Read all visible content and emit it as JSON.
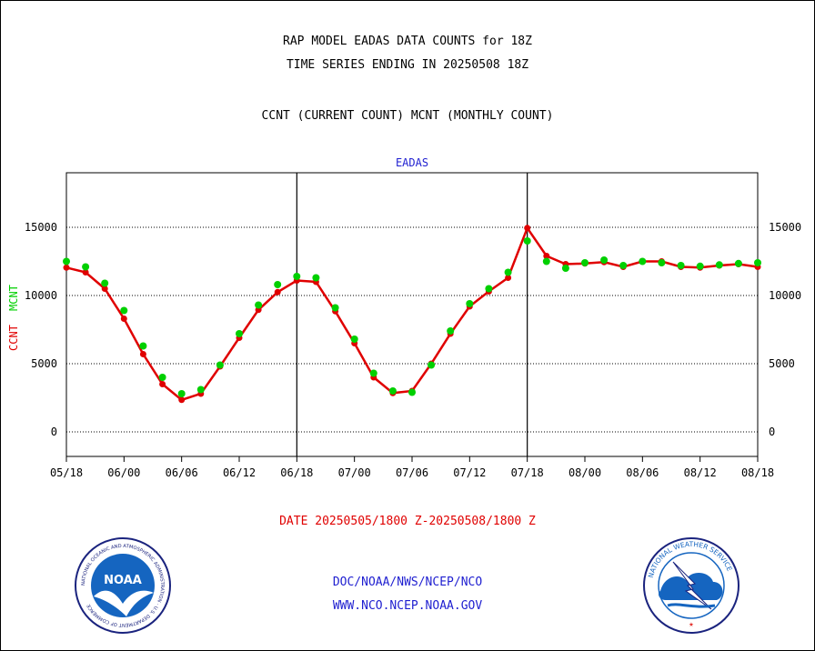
{
  "titles": {
    "line1": "RAP MODEL EADAS DATA COUNTS for 18Z",
    "line2": "TIME SERIES ENDING IN 20250508 18Z",
    "line3": "CCNT (CURRENT COUNT) MCNT (MONTHLY COUNT)"
  },
  "footer": {
    "date_range": "DATE 20250505/1800 Z-20250508/1800 Z",
    "org": "DOC/NOAA/NWS/NCEP/NCO",
    "url": "WWW.NCO.NCEP.NOAA.GOV"
  },
  "logos": {
    "left": {
      "name": "noaa-logo",
      "text": "NOAA",
      "ring_text": "NATIONAL OCEANIC AND ATMOSPHERIC ADMINISTRATION · U.S. DEPARTMENT OF COMMERCE"
    },
    "right": {
      "name": "nws-logo",
      "ring_text": "NATIONAL WEATHER SERVICE"
    }
  },
  "chart_data": {
    "type": "line",
    "title": "EADAS",
    "ylabel_left_series1": "CCNT",
    "ylabel_left_series2": "MCNT",
    "x_tick_labels": [
      "05/18",
      "06/00",
      "06/06",
      "06/12",
      "06/18",
      "07/00",
      "07/06",
      "07/12",
      "07/18",
      "08/00",
      "08/06",
      "08/12",
      "08/18"
    ],
    "xlim": [
      0,
      72
    ],
    "ylim": [
      -1800,
      19000
    ],
    "y_ticks": [
      0,
      5000,
      10000,
      15000
    ],
    "grid": "horizontal-dotted",
    "vertical_separators_x": [
      24,
      48
    ],
    "colors": {
      "ccnt": "#e00000",
      "mcnt": "#00d000",
      "title": "#1f1fd0"
    },
    "series": [
      {
        "name": "CCNT",
        "x": [
          0,
          2,
          4,
          6,
          8,
          10,
          12,
          14,
          16,
          18,
          20,
          22,
          24,
          26,
          28,
          30,
          32,
          34,
          36,
          38,
          40,
          42,
          44,
          46,
          48,
          50,
          52,
          54,
          56,
          58,
          60,
          62,
          64,
          66,
          68,
          70,
          72
        ],
        "values": [
          12050,
          11700,
          10500,
          8300,
          5700,
          3500,
          2350,
          2800,
          4800,
          6900,
          8950,
          10250,
          11100,
          11000,
          8850,
          6500,
          4000,
          2850,
          3000,
          5000,
          7200,
          9200,
          10300,
          11300,
          14950,
          12900,
          12300,
          12350,
          12450,
          12100,
          12500,
          12500,
          12100,
          12050,
          12200,
          12300,
          12100
        ]
      },
      {
        "name": "MCNT",
        "x": [
          0,
          2,
          4,
          6,
          8,
          10,
          12,
          14,
          16,
          18,
          20,
          22,
          24,
          26,
          28,
          30,
          32,
          34,
          36,
          38,
          40,
          42,
          44,
          46,
          48,
          50,
          52,
          54,
          56,
          58,
          60,
          62,
          64,
          66,
          68,
          70,
          72
        ],
        "values": [
          12500,
          12100,
          10900,
          8900,
          6300,
          4000,
          2800,
          3100,
          4900,
          7200,
          9300,
          10800,
          11400,
          11300,
          9100,
          6800,
          4300,
          3000,
          2900,
          4900,
          7400,
          9400,
          10500,
          11700,
          14000,
          12500,
          12000,
          12400,
          12600,
          12200,
          12500,
          12400,
          12200,
          12150,
          12250,
          12350,
          12400
        ]
      }
    ]
  }
}
